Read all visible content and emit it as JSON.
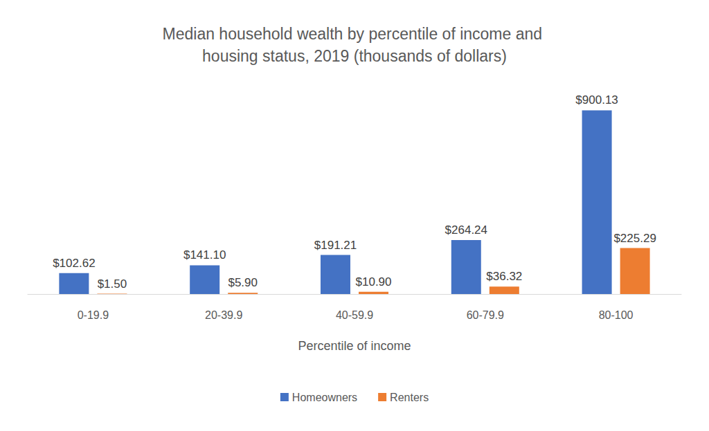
{
  "chart_data": {
    "type": "bar",
    "title": "Median household wealth by percentile of income and housing status, 2019 (thousands of dollars)",
    "x_label": "Percentile of income",
    "categories": [
      "0-19.9",
      "20-39.9",
      "40-59.9",
      "60-79.9",
      "80-100"
    ],
    "series": [
      {
        "name": "Homeowners",
        "color": "#4472c4",
        "values": [
          102.62,
          141.1,
          191.21,
          264.24,
          900.13
        ],
        "value_labels": [
          "$102.62",
          "$141.10",
          "$191.21",
          "$264.24",
          "$900.13"
        ]
      },
      {
        "name": "Renters",
        "color": "#ed7d31",
        "values": [
          1.5,
          5.9,
          10.9,
          36.32,
          225.29
        ],
        "value_labels": [
          "$1.50",
          "$5.90",
          "$10.90",
          "$36.32",
          "$225.29"
        ]
      }
    ],
    "data_labels": true,
    "tick_labels": "x",
    "grid": false,
    "legend": "bottom"
  }
}
